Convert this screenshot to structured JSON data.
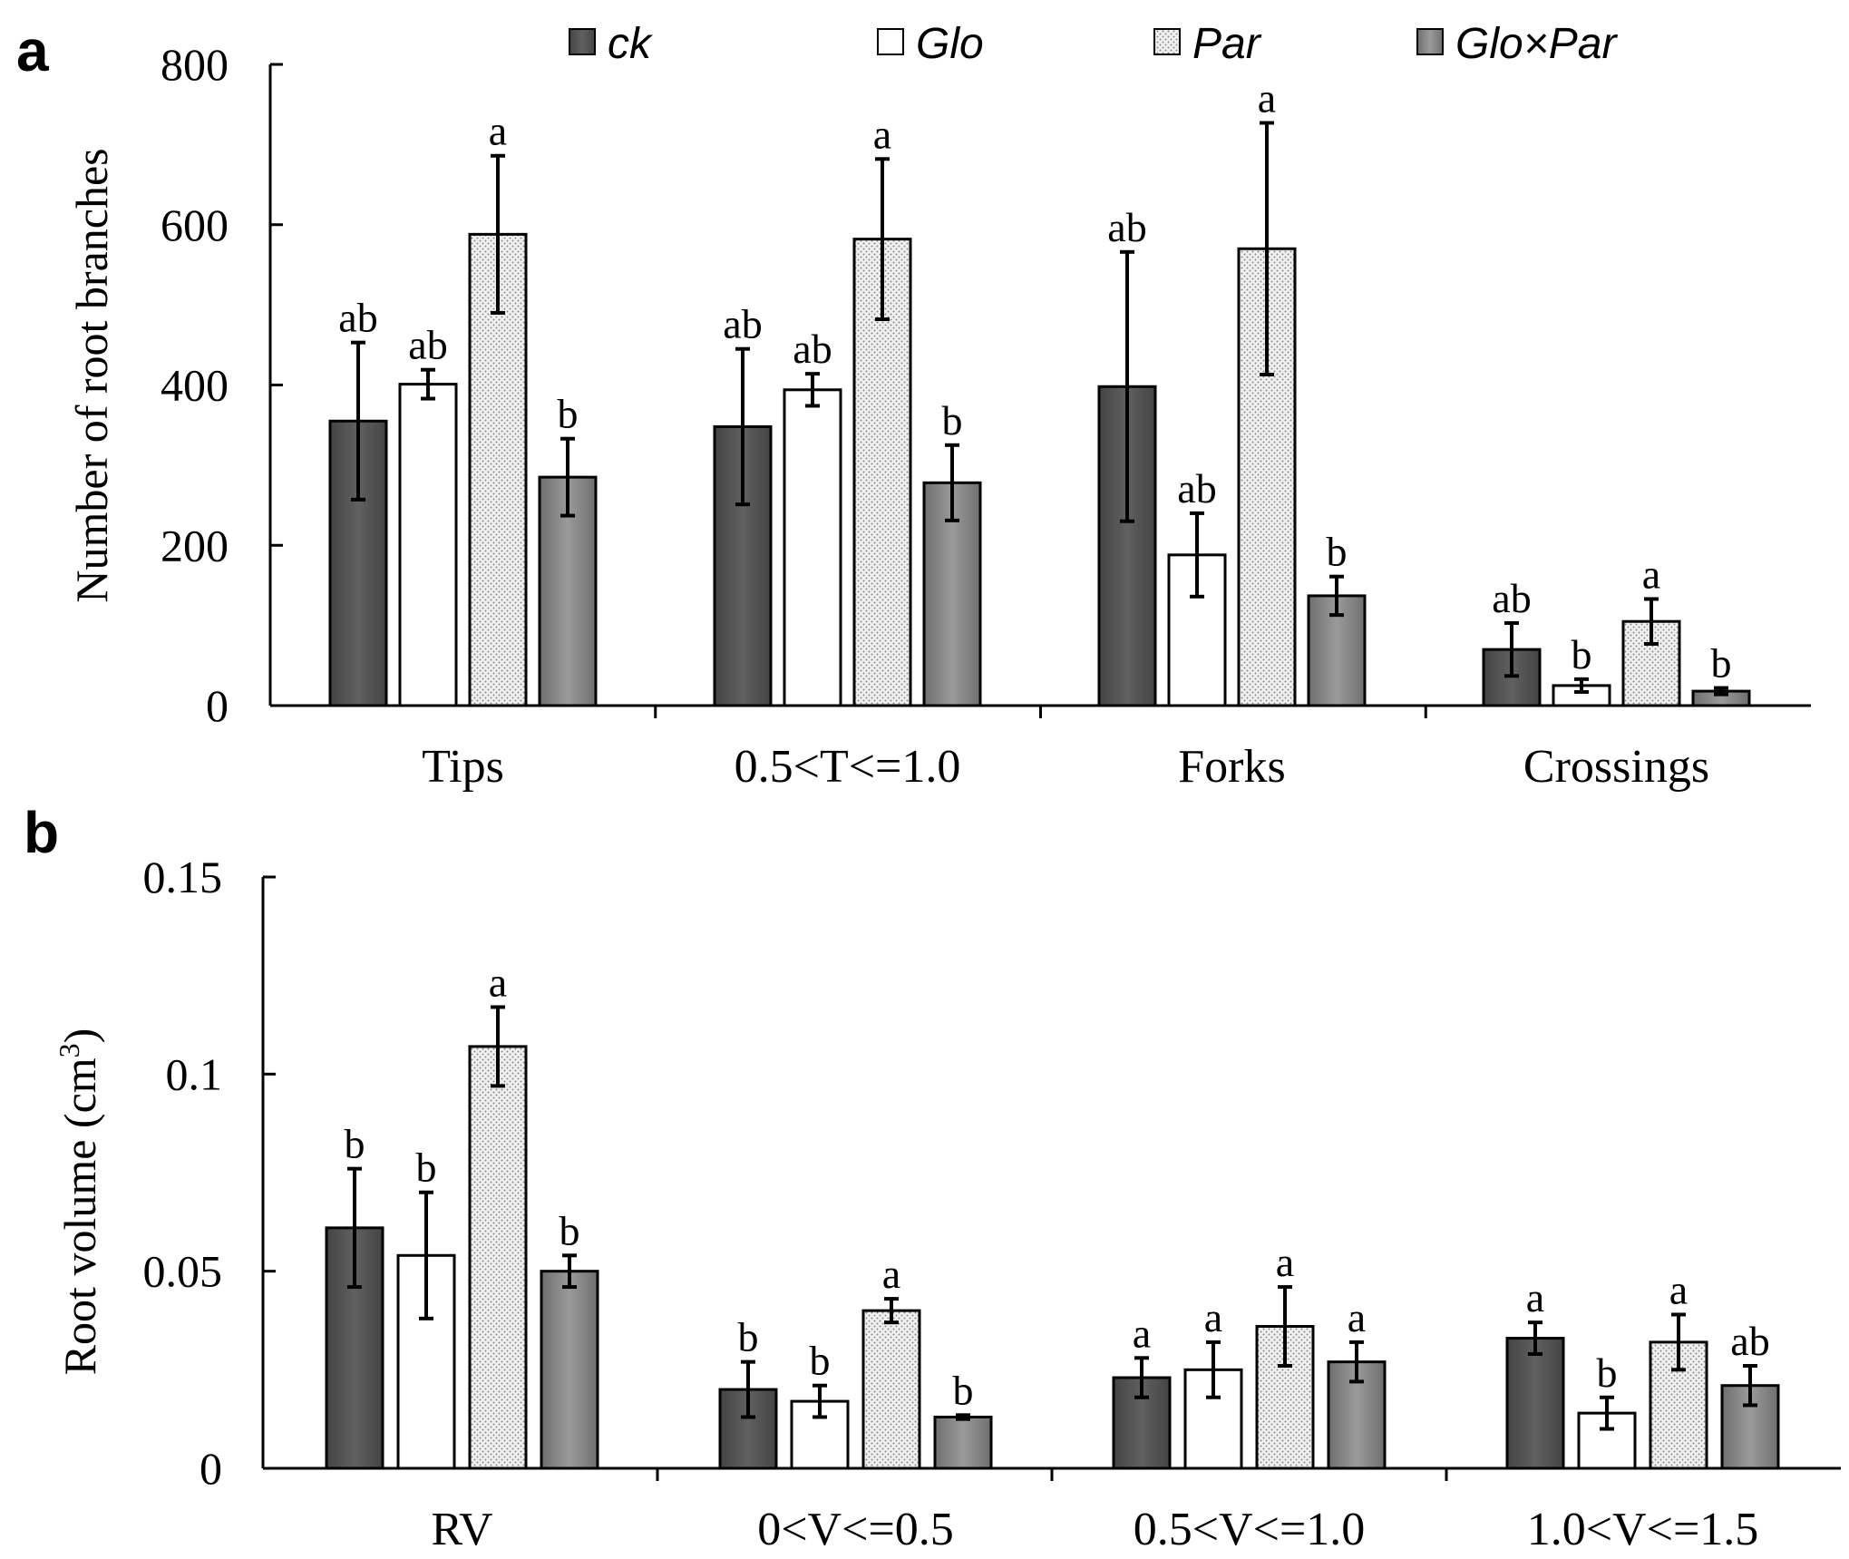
{
  "figure": {
    "series": [
      {
        "name": "ck",
        "color": "#555555",
        "pattern": "solid-dark"
      },
      {
        "name": "Glo",
        "color": "#ffffff",
        "pattern": "solid-white"
      },
      {
        "name": "Par",
        "color": "#e6e6e6",
        "pattern": "dotted"
      },
      {
        "name": "Glo×Par",
        "color": "#808080",
        "pattern": "gradient"
      }
    ]
  },
  "chart_data": [
    {
      "type": "bar",
      "panel_label": "a",
      "title": "",
      "xlabel": "",
      "ylabel": "Number of root branches",
      "ylim": [
        0,
        800
      ],
      "yticks": [
        0,
        200,
        400,
        600,
        800
      ],
      "ytick_labels": [
        "0",
        "200",
        "400",
        "600",
        "800"
      ],
      "categories": [
        "Tips",
        "0.5<T<=1.0",
        "Forks",
        "Crossings"
      ],
      "series": [
        {
          "name": "ck",
          "values": [
            355,
            348,
            398,
            70
          ],
          "errors": [
            98,
            97,
            168,
            33
          ],
          "labels": [
            "ab",
            "ab",
            "ab",
            "ab"
          ]
        },
        {
          "name": "Glo",
          "values": [
            401,
            394,
            188,
            25
          ],
          "errors": [
            18,
            20,
            52,
            8
          ],
          "labels": [
            "ab",
            "ab",
            "ab",
            "b"
          ]
        },
        {
          "name": "Par",
          "values": [
            588,
            582,
            570,
            105
          ],
          "errors": [
            98,
            100,
            157,
            28
          ],
          "labels": [
            "a",
            "a",
            "a",
            "a"
          ]
        },
        {
          "name": "Glo×Par",
          "values": [
            285,
            278,
            137,
            18
          ],
          "errors": [
            48,
            47,
            24,
            4
          ],
          "labels": [
            "b",
            "b",
            "b",
            "b"
          ]
        }
      ]
    },
    {
      "type": "bar",
      "panel_label": "b",
      "title": "",
      "xlabel": "",
      "ylabel": "Root volume (cm",
      "ylabel_superscript": "3",
      "ylabel_suffix": ")",
      "ylim": [
        0,
        0.15
      ],
      "yticks": [
        0,
        0.05,
        0.1,
        0.15
      ],
      "ytick_labels": [
        "0",
        "0.05",
        "0.1",
        "0.15"
      ],
      "categories": [
        "RV",
        "0<V<=0.5",
        "0.5<V<=1.0",
        "1.0<V<=1.5"
      ],
      "series": [
        {
          "name": "ck",
          "values": [
            0.061,
            0.02,
            0.023,
            0.033
          ],
          "errors": [
            0.015,
            0.007,
            0.005,
            0.004
          ],
          "labels": [
            "b",
            "b",
            "a",
            "a"
          ]
        },
        {
          "name": "Glo",
          "values": [
            0.054,
            0.017,
            0.025,
            0.014
          ],
          "errors": [
            0.016,
            0.004,
            0.007,
            0.004
          ],
          "labels": [
            "b",
            "b",
            "a",
            "b"
          ]
        },
        {
          "name": "Par",
          "values": [
            0.107,
            0.04,
            0.036,
            0.032
          ],
          "errors": [
            0.01,
            0.003,
            0.01,
            0.007
          ],
          "labels": [
            "a",
            "a",
            "a",
            "a"
          ]
        },
        {
          "name": "Glo×Par",
          "values": [
            0.05,
            0.013,
            0.027,
            0.021
          ],
          "errors": [
            0.004,
            0.0005,
            0.005,
            0.005
          ],
          "labels": [
            "b",
            "b",
            "a",
            "ab"
          ]
        }
      ]
    }
  ]
}
